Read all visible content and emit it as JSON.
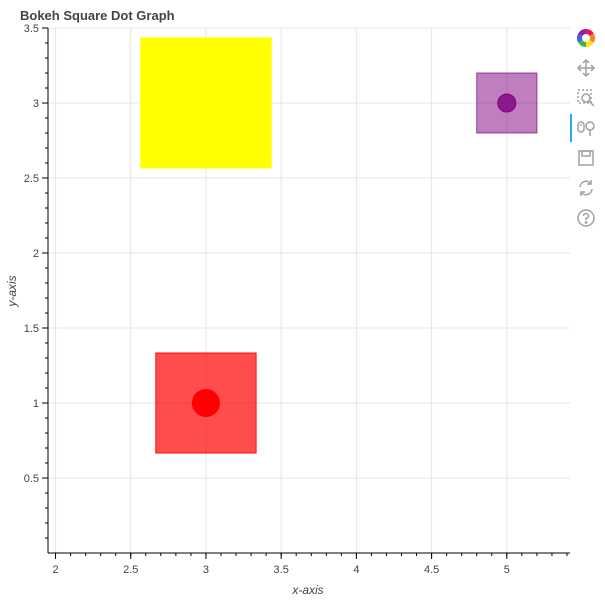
{
  "chart_data": {
    "type": "scatter",
    "title": "Bokeh Square Dot Graph",
    "xlabel": "x-axis",
    "ylabel": "y-axis",
    "xlim": [
      1.95,
      5.42
    ],
    "ylim": [
      0.0,
      3.5
    ],
    "x_ticks": [
      "2",
      "2.5",
      "3",
      "3.5",
      "4",
      "4.5",
      "5"
    ],
    "x_tick_values": [
      2,
      2.5,
      3,
      3.5,
      4,
      4.5,
      5
    ],
    "y_ticks": [
      "0.5",
      "1",
      "1.5",
      "2",
      "2.5",
      "3",
      "3.5"
    ],
    "y_tick_values": [
      0.5,
      1,
      1.5,
      2,
      2.5,
      3,
      3.5
    ],
    "grid": true,
    "legend": "none",
    "points": [
      {
        "x": 3,
        "y": 1,
        "size": 0.667,
        "dot_size": 0.075,
        "color": "#ff0000",
        "alpha": 0.7
      },
      {
        "x": 3,
        "y": 3,
        "size": 0.867,
        "dot_size": 0.085,
        "color": "#ffff00",
        "alpha": 1.0
      },
      {
        "x": 5,
        "y": 3,
        "size": 0.4,
        "dot_size": 0.05,
        "color": "#800080",
        "alpha": 0.5
      }
    ]
  },
  "toolbar": {
    "tools": [
      {
        "name": "bokeh-logo-icon",
        "interactable": true
      },
      {
        "name": "pan-tool-icon",
        "interactable": true
      },
      {
        "name": "box-zoom-tool-icon",
        "interactable": true
      },
      {
        "name": "wheel-zoom-tool-icon",
        "interactable": true,
        "active": true
      },
      {
        "name": "save-tool-icon",
        "interactable": true
      },
      {
        "name": "reset-tool-icon",
        "interactable": true
      },
      {
        "name": "help-tool-icon",
        "interactable": true
      }
    ],
    "colors": {
      "icon": "#a0a0a0",
      "active": "#26aae1"
    }
  }
}
